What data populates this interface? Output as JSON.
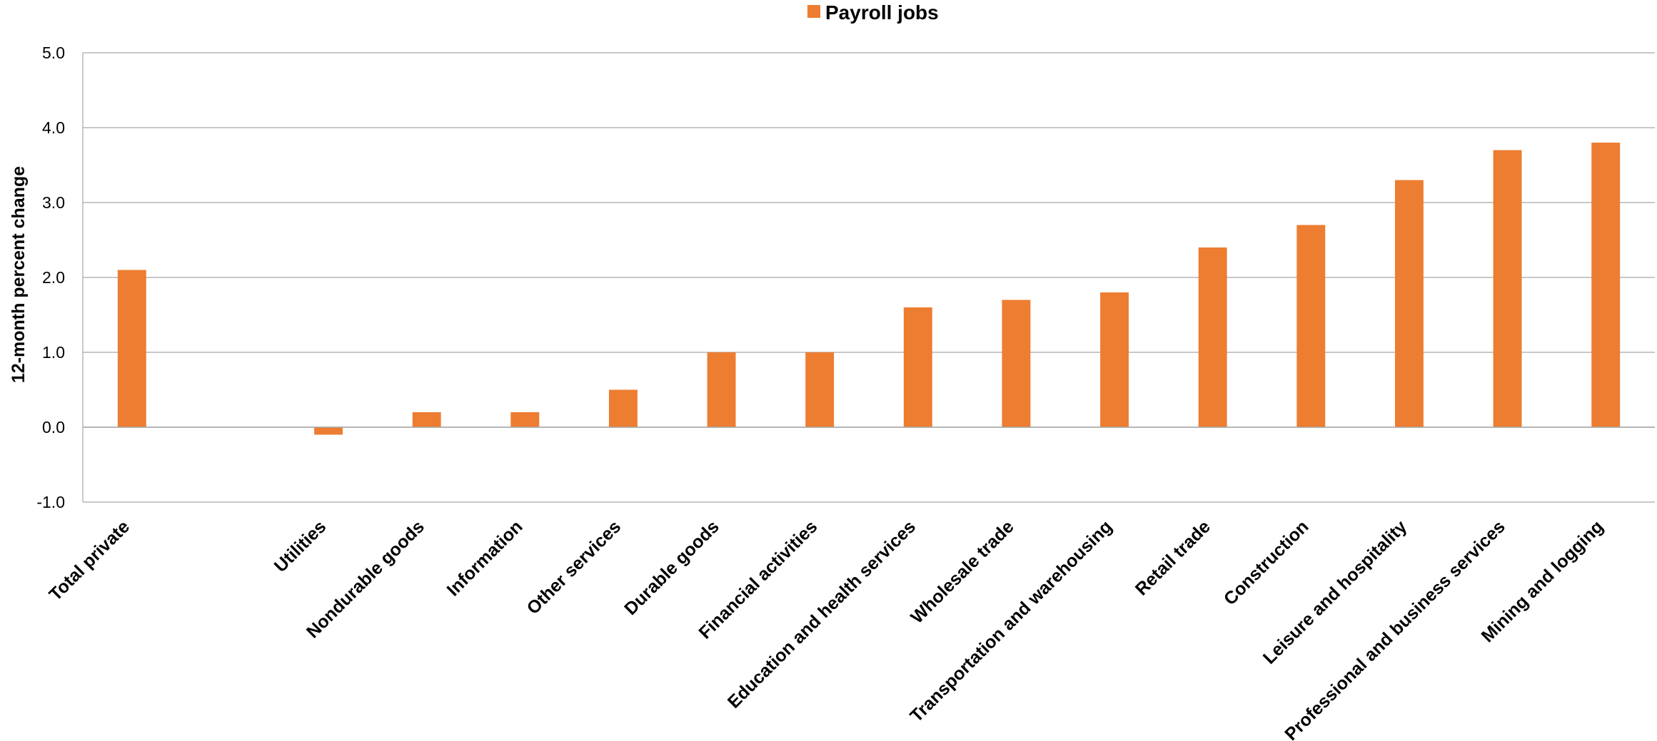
{
  "chart_data": {
    "type": "bar",
    "title": "",
    "xlabel": "",
    "ylabel": "12-month percent change",
    "ylim": [
      -1.0,
      5.0
    ],
    "yticks": [
      "5.0",
      "4.0",
      "3.0",
      "2.0",
      "1.0",
      "0.0",
      "-1.0"
    ],
    "grid": true,
    "legend_position": "top-center",
    "categories": [
      "Total private",
      "",
      "Utilities",
      "Nondurable goods",
      "Information",
      "Other services",
      "Durable goods",
      "Financial activities",
      "Education and health services",
      "Wholesale trade",
      "Transportation and warehousing",
      "Retail trade",
      "Construction",
      "Leisure and hospitality",
      "Professional and business services",
      "Mining and logging"
    ],
    "series": [
      {
        "name": "Payroll jobs",
        "color": "#ED7D31",
        "values": [
          2.1,
          null,
          -0.1,
          0.2,
          0.2,
          0.5,
          1.0,
          1.0,
          1.6,
          1.7,
          1.8,
          2.4,
          2.7,
          3.3,
          3.7,
          3.8
        ]
      }
    ]
  }
}
